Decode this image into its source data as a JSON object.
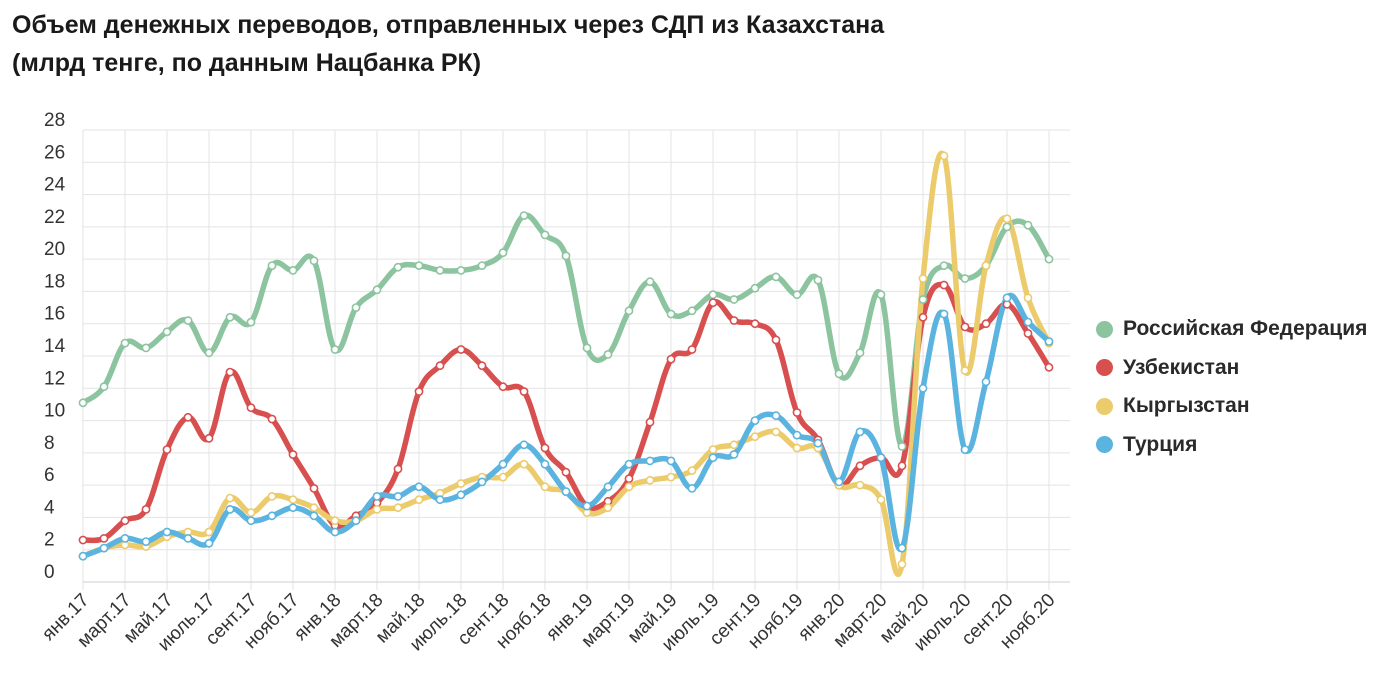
{
  "chart_data": {
    "type": "line",
    "title": "Объем денежных переводов, отправленных через СДП из Казахстана",
    "subtitle": "(млрд тенге, по данным Нацбанка РК)",
    "xlabel": "",
    "ylabel": "",
    "ylim": [
      0,
      28
    ],
    "yticks": [
      0,
      2,
      4,
      6,
      8,
      10,
      12,
      14,
      16,
      18,
      20,
      22,
      24,
      26,
      28
    ],
    "grid": true,
    "legend_position": "right",
    "categories": [
      "янв.17",
      "фев.17",
      "март.17",
      "апр.17",
      "май.17",
      "июнь.17",
      "июль.17",
      "авг.17",
      "сент.17",
      "окт.17",
      "нояб.17",
      "дек.17",
      "янв.18",
      "фев.18",
      "март.18",
      "апр.18",
      "май.18",
      "июнь.18",
      "июль.18",
      "авг.18",
      "сент.18",
      "окт.18",
      "нояб.18",
      "дек.18",
      "янв.19",
      "фев.19",
      "март.19",
      "апр.19",
      "май.19",
      "июнь.19",
      "июль.19",
      "авг.19",
      "сент.19",
      "окт.19",
      "нояб.19",
      "дек.19",
      "янв.20",
      "фев.20",
      "март.20",
      "апр.20",
      "май.20",
      "июнь.20",
      "июль.20",
      "авг.20",
      "сент.20",
      "окт.20",
      "нояб.20",
      "дек.20"
    ],
    "xtick_labels": [
      "янв.17",
      "март.17",
      "май.17",
      "июль.17",
      "сент.17",
      "нояб.17",
      "янв.18",
      "март.18",
      "май.18",
      "июль.18",
      "сент.18",
      "нояб.18",
      "янв.19",
      "март.19",
      "май.19",
      "июль.19",
      "сент.19",
      "нояб.19",
      "янв.20",
      "март.20",
      "май.20",
      "июль.20",
      "сент.20",
      "нояб.20"
    ],
    "series": [
      {
        "name": "Российская Федерация",
        "color": "#8cc4a0",
        "values": [
          11.1,
          12.1,
          14.8,
          14.5,
          15.5,
          16.2,
          14.2,
          16.4,
          16.1,
          19.6,
          19.3,
          19.9,
          14.4,
          17.0,
          18.1,
          19.5,
          19.6,
          19.3,
          19.3,
          19.6,
          20.4,
          22.7,
          21.5,
          20.2,
          14.5,
          14.1,
          16.8,
          18.6,
          16.6,
          16.8,
          17.8,
          17.5,
          18.2,
          18.9,
          17.8,
          18.7,
          12.9,
          14.2,
          17.8,
          8.4,
          17.5,
          19.6,
          18.8,
          19.6,
          22.0,
          22.1,
          20.0,
          null
        ]
      },
      {
        "name": "Узбекистан",
        "color": "#d84f4f",
        "values": [
          2.6,
          2.7,
          3.8,
          4.5,
          8.2,
          10.2,
          8.9,
          13.0,
          10.8,
          10.1,
          7.9,
          5.8,
          3.5,
          4.1,
          4.9,
          7.0,
          11.8,
          13.4,
          14.4,
          13.4,
          12.1,
          11.8,
          8.3,
          6.8,
          4.7,
          5.0,
          6.4,
          9.9,
          13.8,
          14.4,
          17.3,
          16.2,
          16.0,
          15.0,
          10.5,
          8.8,
          6.0,
          7.2,
          7.7,
          7.2,
          16.4,
          18.4,
          15.8,
          16.0,
          17.2,
          15.4,
          13.3,
          null
        ]
      },
      {
        "name": "Кыргызстан",
        "color": "#ebcb6b",
        "values": [
          1.6,
          2.1,
          2.3,
          2.2,
          2.8,
          3.1,
          3.1,
          5.2,
          4.3,
          5.3,
          5.1,
          4.6,
          3.8,
          3.8,
          4.5,
          4.6,
          5.1,
          5.5,
          6.1,
          6.5,
          6.5,
          7.3,
          5.9,
          5.6,
          4.3,
          4.6,
          5.9,
          6.3,
          6.5,
          6.9,
          8.2,
          8.5,
          9.0,
          9.3,
          8.3,
          8.3,
          6.0,
          6.0,
          5.1,
          1.1,
          18.8,
          26.4,
          13.1,
          19.6,
          22.5,
          17.6,
          14.8,
          null
        ]
      },
      {
        "name": "Турция",
        "color": "#5bb3df",
        "values": [
          1.6,
          2.1,
          2.7,
          2.5,
          3.1,
          2.7,
          2.4,
          4.5,
          3.8,
          4.1,
          4.6,
          4.1,
          3.1,
          3.8,
          5.3,
          5.3,
          5.9,
          5.1,
          5.4,
          6.2,
          7.3,
          8.5,
          7.3,
          5.6,
          4.7,
          5.9,
          7.3,
          7.5,
          7.5,
          5.8,
          7.7,
          7.9,
          10.0,
          10.3,
          9.1,
          8.6,
          6.2,
          9.3,
          7.7,
          2.1,
          12.0,
          16.6,
          8.2,
          12.4,
          17.6,
          16.1,
          14.9,
          null
        ]
      }
    ]
  }
}
